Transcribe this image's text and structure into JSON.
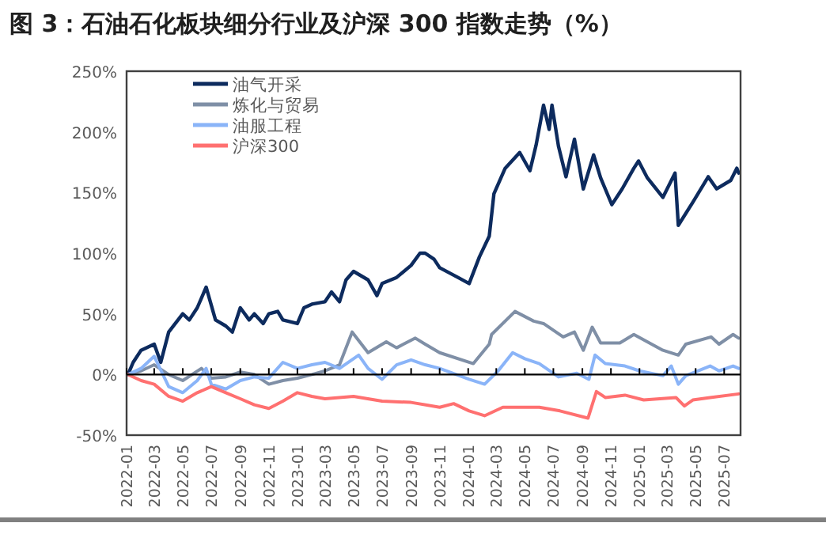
{
  "chart_data": {
    "type": "line",
    "title": "图 3：石油石化板块细分行业及沪深 300 指数走势（%）",
    "xlim": [
      "2022-01-01",
      "2025-08-05"
    ],
    "xticks": [
      "2022-01",
      "2022-03",
      "2022-05",
      "2022-07",
      "2022-09",
      "2022-11",
      "2023-01",
      "2023-03",
      "2023-05",
      "2023-07",
      "2023-09",
      "2023-11",
      "2024-01",
      "2024-03",
      "2024-05",
      "2024-07",
      "2024-09",
      "2024-11",
      "2025-01",
      "2025-03",
      "2025-05",
      "2025-07"
    ],
    "ylim": [
      -50,
      250
    ],
    "yticks": [
      {
        "value": -50,
        "label": "-50%"
      },
      {
        "value": 0,
        "label": "0%"
      },
      {
        "value": 50,
        "label": "50%"
      },
      {
        "value": 100,
        "label": "100%"
      },
      {
        "value": 150,
        "label": "150%"
      },
      {
        "value": 200,
        "label": "200%"
      },
      {
        "value": 250,
        "label": "250%"
      }
    ],
    "legend": "top left",
    "marker": "none",
    "line_style": "solid",
    "series": [
      {
        "name": "油气开采",
        "color": "#0d2b5e",
        "x": [
          "2022-01-04",
          "2022-01-15",
          "2022-02-01",
          "2022-03-01",
          "2022-03-15",
          "2022-04-01",
          "2022-05-01",
          "2022-05-15",
          "2022-06-01",
          "2022-06-20",
          "2022-07-10",
          "2022-08-01",
          "2022-08-15",
          "2022-09-01",
          "2022-09-20",
          "2022-10-01",
          "2022-10-20",
          "2022-11-01",
          "2022-11-20",
          "2022-12-01",
          "2023-01-01",
          "2023-01-15",
          "2023-02-01",
          "2023-03-01",
          "2023-03-15",
          "2023-04-01",
          "2023-04-15",
          "2023-05-01",
          "2023-06-01",
          "2023-06-20",
          "2023-07-01",
          "2023-08-01",
          "2023-09-01",
          "2023-09-20",
          "2023-10-01",
          "2023-10-20",
          "2023-11-01",
          "2023-12-10",
          "2024-01-03",
          "2024-01-25",
          "2024-02-15",
          "2024-02-25",
          "2024-03-20",
          "2024-04-20",
          "2024-05-12",
          "2024-05-25",
          "2024-06-10",
          "2024-06-22",
          "2024-06-28",
          "2024-07-12",
          "2024-07-28",
          "2024-08-15",
          "2024-09-03",
          "2024-09-25",
          "2024-10-10",
          "2024-11-03",
          "2024-11-25",
          "2024-12-20",
          "2024-12-30",
          "2025-01-18",
          "2025-02-20",
          "2025-03-18",
          "2025-03-25",
          "2025-04-25",
          "2025-05-28",
          "2025-06-15",
          "2025-07-15",
          "2025-07-28",
          "2025-08-01"
        ],
        "values": [
          0,
          10,
          20,
          25,
          10,
          35,
          50,
          45,
          55,
          72,
          45,
          40,
          35,
          55,
          45,
          50,
          42,
          50,
          52,
          45,
          42,
          55,
          58,
          60,
          68,
          60,
          78,
          85,
          78,
          65,
          75,
          80,
          90,
          100,
          100,
          95,
          88,
          80,
          75,
          97,
          114,
          149,
          170,
          183,
          168,
          189,
          222,
          202,
          222,
          188,
          163,
          194,
          153,
          181,
          162,
          140,
          153,
          170,
          176,
          162,
          146,
          166,
          123,
          142,
          163,
          153,
          160,
          170,
          166
        ]
      },
      {
        "name": "炼化与贸易",
        "color": "#7f8fa6",
        "x": [
          "2022-01-04",
          "2022-02-01",
          "2022-03-01",
          "2022-04-01",
          "2022-05-01",
          "2022-06-10",
          "2022-07-01",
          "2022-08-01",
          "2022-09-01",
          "2022-10-01",
          "2022-11-01",
          "2022-12-01",
          "2023-01-01",
          "2023-02-01",
          "2023-03-01",
          "2023-04-01",
          "2023-04-28",
          "2023-06-01",
          "2023-07-10",
          "2023-08-01",
          "2023-09-10",
          "2023-10-01",
          "2023-11-01",
          "2024-01-12",
          "2024-02-15",
          "2024-02-20",
          "2024-04-10",
          "2024-05-20",
          "2024-06-10",
          "2024-07-22",
          "2024-08-15",
          "2024-09-03",
          "2024-09-22",
          "2024-10-10",
          "2024-11-20",
          "2024-12-20",
          "2025-02-20",
          "2025-03-25",
          "2025-04-10",
          "2025-06-03",
          "2025-06-20",
          "2025-07-20",
          "2025-08-01"
        ],
        "values": [
          0,
          3,
          8,
          0,
          -5,
          5,
          -3,
          -2,
          2,
          0,
          -8,
          -5,
          -3,
          0,
          3,
          8,
          35,
          18,
          27,
          22,
          30,
          25,
          18,
          9,
          25,
          33,
          52,
          44,
          42,
          31,
          35,
          20,
          39,
          26,
          26,
          33,
          20,
          16,
          25,
          31,
          25,
          33,
          30
        ]
      },
      {
        "name": "油服工程",
        "color": "#8ab4f8",
        "x": [
          "2022-01-04",
          "2022-02-01",
          "2022-03-01",
          "2022-04-01",
          "2022-05-01",
          "2022-06-01",
          "2022-06-20",
          "2022-07-01",
          "2022-08-01",
          "2022-09-01",
          "2022-10-01",
          "2022-11-01",
          "2022-12-01",
          "2023-01-01",
          "2023-02-01",
          "2023-03-01",
          "2023-04-01",
          "2023-05-12",
          "2023-06-01",
          "2023-07-01",
          "2023-08-01",
          "2023-09-01",
          "2023-10-01",
          "2023-11-01",
          "2024-01-03",
          "2024-02-05",
          "2024-03-05",
          "2024-04-05",
          "2024-05-01",
          "2024-06-01",
          "2024-07-12",
          "2024-08-20",
          "2024-09-15",
          "2024-09-28",
          "2024-10-20",
          "2024-12-01",
          "2025-01-01",
          "2025-02-20",
          "2025-03-10",
          "2025-03-25",
          "2025-04-10",
          "2025-06-01",
          "2025-06-20",
          "2025-07-20",
          "2025-08-01"
        ],
        "values": [
          0,
          5,
          15,
          -10,
          -15,
          -5,
          5,
          -8,
          -12,
          -5,
          -2,
          -3,
          10,
          5,
          8,
          10,
          5,
          16,
          5,
          -4,
          8,
          12,
          8,
          5,
          -4,
          -8,
          3,
          18,
          13,
          9,
          -2,
          1,
          -4,
          16,
          9,
          7,
          3,
          -1,
          7,
          -8,
          -1,
          7,
          3,
          7,
          5
        ]
      },
      {
        "name": "沪深300",
        "color": "#ff7070",
        "x": [
          "2022-01-04",
          "2022-02-01",
          "2022-03-01",
          "2022-04-01",
          "2022-05-01",
          "2022-06-01",
          "2022-07-01",
          "2022-08-01",
          "2022-09-01",
          "2022-10-01",
          "2022-11-01",
          "2022-12-01",
          "2023-01-01",
          "2023-02-01",
          "2023-03-01",
          "2023-05-01",
          "2023-07-01",
          "2023-09-01",
          "2023-11-01",
          "2023-12-01",
          "2024-01-03",
          "2024-02-05",
          "2024-03-15",
          "2024-06-01",
          "2024-07-15",
          "2024-09-13",
          "2024-10-01",
          "2024-10-20",
          "2024-12-01",
          "2025-01-10",
          "2025-03-20",
          "2025-04-07",
          "2025-04-25",
          "2025-06-01",
          "2025-08-01"
        ],
        "values": [
          0,
          -5,
          -8,
          -18,
          -22,
          -15,
          -10,
          -15,
          -20,
          -25,
          -28,
          -22,
          -15,
          -18,
          -20,
          -18,
          -22,
          -23,
          -27,
          -24,
          -30,
          -34,
          -27,
          -27,
          -30,
          -36,
          -14,
          -19,
          -17,
          -21,
          -19,
          -26,
          -21,
          -19,
          -16
        ]
      }
    ]
  }
}
